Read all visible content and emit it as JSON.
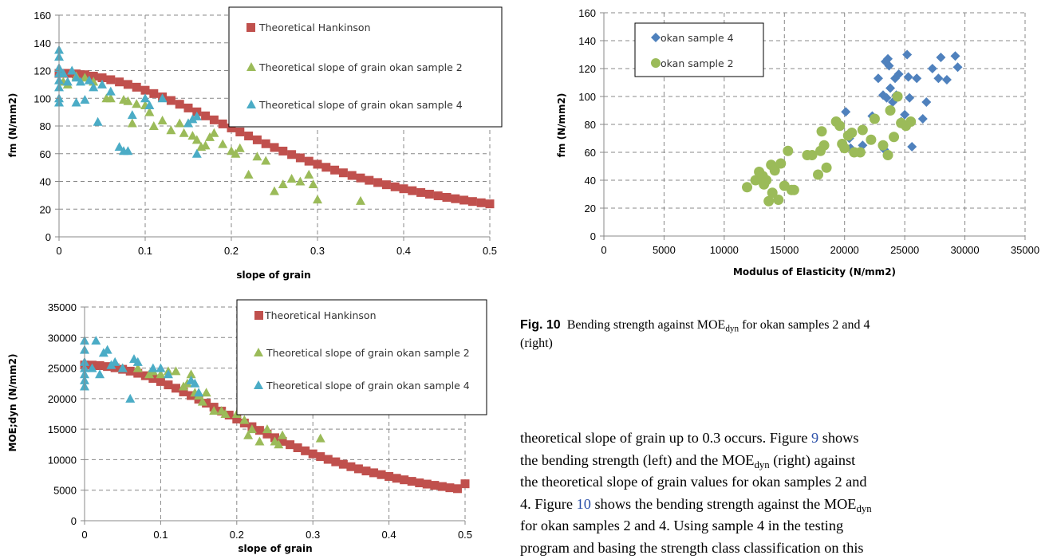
{
  "charts": [
    {
      "ylabel": "fm (N/mm2)",
      "xlabel": "slope of grain",
      "xticks": [
        "0",
        "0.1",
        "0.2",
        "0.3",
        "0.4",
        "0.5"
      ],
      "yticks": [
        "0",
        "20",
        "40",
        "60",
        "80",
        "100",
        "120",
        "140",
        "160"
      ],
      "legend": [
        "Theoretical Hankinson",
        "Theoretical slope of grain okan sample 2",
        "Theoretical slope of grain okan sample 4"
      ]
    },
    {
      "ylabel": "MOE;dyn (N/mm2)",
      "xlabel": "slope of grain",
      "xticks": [
        "0",
        "0.1",
        "0.2",
        "0.3",
        "0.4",
        "0.5"
      ],
      "yticks": [
        "0",
        "5000",
        "10000",
        "15000",
        "20000",
        "25000",
        "30000",
        "35000"
      ],
      "legend": [
        "Theoretical Hankinson",
        "Theoretical slope of grain okan sample 2",
        "Theoretical slope of grain okan sample 4"
      ]
    },
    {
      "ylabel": "fm (N/mm2)",
      "xlabel": "Modulus of Elasticity (N/mm2)",
      "xticks": [
        "0",
        "5000",
        "10000",
        "15000",
        "20000",
        "25000",
        "30000",
        "35000"
      ],
      "yticks": [
        "0",
        "20",
        "40",
        "60",
        "80",
        "100",
        "120",
        "140",
        "160"
      ],
      "legend": [
        "okan sample 4",
        "okan sample 2"
      ]
    }
  ],
  "chart_data": [
    {
      "type": "scatter",
      "xlim": [
        0,
        0.5
      ],
      "ylim": [
        0,
        160
      ],
      "grid": true,
      "legend_position": "top-right",
      "series": [
        {
          "name": "Theoretical Hankinson",
          "marker": "square",
          "color": "#c0504d",
          "x_start": 0,
          "x_end": 0.5,
          "x_step": 0.01,
          "y": [
            118,
            118,
            117.6,
            117,
            116,
            114.8,
            113.4,
            111.8,
            110,
            108,
            105.8,
            103.4,
            101,
            98.4,
            95.7,
            93,
            90.2,
            87.3,
            84.4,
            81.5,
            78.6,
            75.7,
            72.8,
            70,
            67.2,
            64.5,
            61.9,
            59.4,
            57,
            54.6,
            52.4,
            50.2,
            48.2,
            46.2,
            44.3,
            42.5,
            40.8,
            39.2,
            37.6,
            36.1,
            34.7,
            33.3,
            32,
            30.8,
            29.6,
            28.5,
            27.5,
            26.5,
            25.5,
            24.6,
            23.8
          ]
        },
        {
          "name": "Theoretical slope of grain okan sample 2",
          "marker": "triangle",
          "color": "#9bbb59",
          "x": [
            0.005,
            0.01,
            0.02,
            0.03,
            0.04,
            0.055,
            0.06,
            0.075,
            0.08,
            0.085,
            0.09,
            0.1,
            0.105,
            0.11,
            0.12,
            0.13,
            0.14,
            0.145,
            0.15,
            0.155,
            0.16,
            0.165,
            0.17,
            0.175,
            0.18,
            0.19,
            0.2,
            0.205,
            0.21,
            0.22,
            0.23,
            0.24,
            0.25,
            0.26,
            0.27,
            0.28,
            0.29,
            0.295,
            0.3,
            0.35
          ],
          "y": [
            112,
            110,
            116,
            115,
            112,
            100,
            100,
            99,
            98,
            82,
            96,
            95,
            90,
            80,
            84,
            77,
            82,
            75,
            82,
            73,
            70,
            65,
            66,
            72,
            75,
            67,
            62,
            60,
            64,
            45,
            58,
            55,
            33,
            38,
            42,
            40,
            45,
            38,
            27,
            26
          ]
        },
        {
          "name": "Theoretical slope of grain okan sample 4",
          "marker": "triangle",
          "color": "#4bacc6",
          "x": [
            0,
            0,
            0,
            0,
            0,
            0,
            0,
            0,
            0.005,
            0.01,
            0.015,
            0.02,
            0.02,
            0.025,
            0.03,
            0.035,
            0.04,
            0.045,
            0.05,
            0.06,
            0.07,
            0.075,
            0.08,
            0.085,
            0.1,
            0.105,
            0.12,
            0.15,
            0.155,
            0.16,
            0.16
          ],
          "y": [
            135,
            130,
            122,
            118,
            113,
            108,
            100,
            97,
            118,
            112,
            120,
            97,
            115,
            112,
            99,
            113,
            108,
            83,
            110,
            105,
            65,
            62,
            62,
            88,
            100,
            95,
            100,
            82,
            85,
            60,
            87
          ]
        }
      ]
    },
    {
      "type": "scatter",
      "xlim": [
        0,
        0.5
      ],
      "ylim": [
        0,
        35000
      ],
      "grid": true,
      "legend_position": "top-right",
      "series": [
        {
          "name": "Theoretical Hankinson",
          "marker": "square",
          "color": "#c0504d",
          "x_start": 0,
          "x_end": 0.5,
          "x_step": 0.01,
          "y": [
            25500,
            25480,
            25400,
            25250,
            25050,
            24800,
            24500,
            24150,
            23750,
            23300,
            22800,
            22250,
            21700,
            21100,
            20500,
            19900,
            19250,
            18600,
            17950,
            17300,
            16650,
            16000,
            15400,
            14800,
            14200,
            13600,
            13000,
            12450,
            11950,
            11450,
            10950,
            10500,
            10050,
            9650,
            9250,
            8850,
            8500,
            8150,
            7850,
            7550,
            7250,
            6950,
            6700,
            6450,
            6200,
            6000,
            5800,
            5600,
            5400,
            5250,
            6050
          ]
        },
        {
          "name": "Theoretical slope of grain okan sample 2",
          "marker": "triangle",
          "color": "#9bbb59",
          "x": [
            0.05,
            0.07,
            0.085,
            0.09,
            0.1,
            0.11,
            0.12,
            0.13,
            0.135,
            0.14,
            0.145,
            0.15,
            0.155,
            0.16,
            0.17,
            0.18,
            0.185,
            0.2,
            0.21,
            0.215,
            0.22,
            0.23,
            0.24,
            0.25,
            0.255,
            0.26,
            0.31
          ],
          "y": [
            25000,
            25000,
            24000,
            24500,
            24000,
            24500,
            24500,
            22000,
            22500,
            24000,
            21000,
            20500,
            19500,
            21000,
            18000,
            18000,
            17500,
            17500,
            16500,
            14000,
            15000,
            13000,
            15000,
            13000,
            12500,
            14000,
            13500
          ]
        },
        {
          "name": "Theoretical slope of grain okan sample 4",
          "marker": "triangle",
          "color": "#4bacc6",
          "x": [
            0,
            0,
            0,
            0,
            0,
            0,
            0,
            0.01,
            0.015,
            0.02,
            0.025,
            0.03,
            0.035,
            0.04,
            0.05,
            0.06,
            0.065,
            0.07,
            0.09,
            0.1,
            0.11,
            0.14,
            0.145,
            0.15
          ],
          "y": [
            29500,
            28000,
            26000,
            25000,
            24000,
            23000,
            22000,
            25000,
            29500,
            24000,
            27500,
            28000,
            25500,
            26000,
            25000,
            20000,
            26500,
            26000,
            25000,
            25000,
            24000,
            23000,
            22500,
            21000
          ]
        }
      ]
    },
    {
      "type": "scatter",
      "xlim": [
        0,
        35000
      ],
      "ylim": [
        0,
        160
      ],
      "grid": true,
      "legend_position": "top-left",
      "series": [
        {
          "name": "okan sample 4",
          "marker": "diamond",
          "color": "#4f81bd",
          "x": [
            19800,
            20100,
            20400,
            22300,
            22800,
            23200,
            23400,
            23500,
            23600,
            23700,
            23800,
            24000,
            24200,
            24300,
            24500,
            24700,
            25000,
            25200,
            25300,
            25400,
            25600,
            26000,
            26500,
            26800,
            27300,
            27800,
            28000,
            28500,
            29200,
            29400,
            20500,
            21500,
            23300
          ],
          "y": [
            65,
            89,
            70,
            86,
            113,
            101,
            125,
            99,
            127,
            122,
            106,
            96,
            113,
            101,
            116,
            82,
            87,
            130,
            114,
            99,
            64,
            113,
            84,
            96,
            120,
            113,
            128,
            112,
            129,
            121,
            63,
            65,
            62
          ]
        },
        {
          "name": "okan sample 2",
          "marker": "circle",
          "color": "#9bbb59",
          "x": [
            11900,
            12600,
            12900,
            13200,
            13300,
            13500,
            13700,
            13900,
            14200,
            14500,
            14700,
            15000,
            15300,
            15600,
            16900,
            17300,
            17800,
            18000,
            18100,
            18300,
            18500,
            19300,
            19600,
            19800,
            20000,
            20300,
            20600,
            21300,
            21500,
            22200,
            22500,
            23200,
            23600,
            23800,
            24100,
            24400,
            24700,
            25100,
            25500,
            20800,
            14000,
            15800
          ],
          "y": [
            35,
            40,
            46,
            43,
            37,
            40,
            25,
            51,
            47,
            26,
            52,
            36,
            61,
            33,
            58,
            58,
            44,
            61,
            75,
            65,
            49,
            82,
            79,
            66,
            63,
            72,
            74,
            60,
            76,
            69,
            84,
            65,
            58,
            90,
            71,
            100,
            81,
            79,
            82,
            60,
            31,
            33
          ]
        }
      ]
    }
  ],
  "caption": {
    "label": "Fig. 10",
    "text_a": "Bending strength against MOE",
    "sub": "dyn",
    "text_b": " for okan samples 2 and 4",
    "text_c": "(right)"
  },
  "body": {
    "l1a": "theoretical slope of grain up to 0.3 occurs. Figure ",
    "l1ref": "9",
    "l1b": " shows",
    "l2a": "the bending strength (left) and the MOE",
    "l2sub": "dyn",
    "l2b": " (right) against",
    "l3": "the theoretical slope of grain values for okan samples 2 and",
    "l4a": "4. Figure ",
    "l4ref": "10",
    "l4b": " shows the bending strength against the MOE",
    "l4sub": "dyn",
    "l5": "for okan samples 2 and 4. Using sample 4 in the testing",
    "l6": "program and basing the strength class classification on this"
  }
}
